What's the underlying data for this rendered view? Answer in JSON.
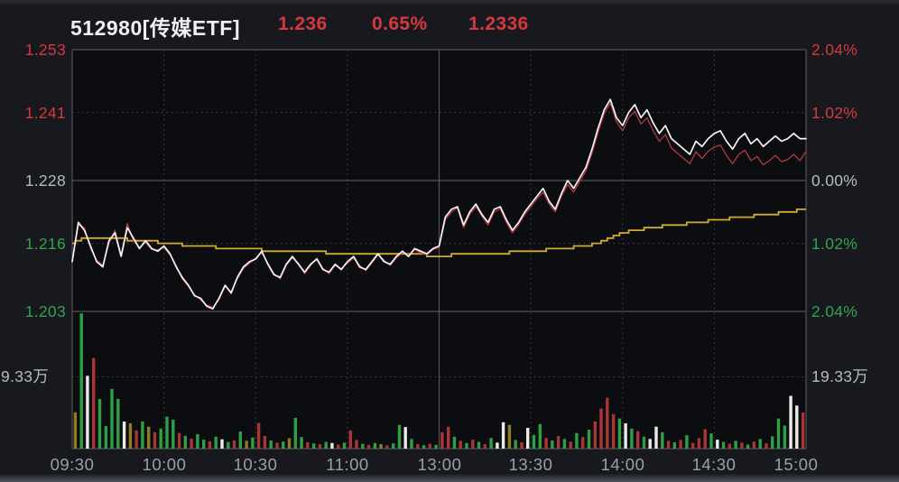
{
  "header": {
    "symbol_title": "512980[传媒ETF]",
    "price": "1.236",
    "change_pct": "0.65%",
    "iopv": "1.2336",
    "title_color": "#eef0f3",
    "value_color": "#d6393d"
  },
  "colors": {
    "background": "#17191e",
    "plot_background": "#0b0d11",
    "grid_solid": "#4f535a",
    "grid_dotted": "#80838a",
    "up_text": "#d6393d",
    "down_text": "#33a34f",
    "neutral_text": "#b6bac1",
    "time_text": "#9aa0a8"
  },
  "chart_data": {
    "type": "line",
    "title": "512980[传媒ETF] intraday price with volume",
    "x_axis": {
      "minutes_total": 240,
      "ticks": [
        {
          "label": "09:30",
          "minute": 0
        },
        {
          "label": "10:00",
          "minute": 30
        },
        {
          "label": "10:30",
          "minute": 60
        },
        {
          "label": "11:00",
          "minute": 90
        },
        {
          "label": "13:00",
          "minute": 120
        },
        {
          "label": "13:30",
          "minute": 150
        },
        {
          "label": "14:00",
          "minute": 180
        },
        {
          "label": "14:30",
          "minute": 210
        },
        {
          "label": "15:00",
          "minute": 240
        }
      ]
    },
    "price_axis": {
      "min": 1.203,
      "max": 1.253,
      "ticks": [
        {
          "label": "1.253",
          "value": 1.253,
          "color": "#d6393d"
        },
        {
          "label": "1.241",
          "value": 1.241,
          "color": "#d6393d"
        },
        {
          "label": "1.228",
          "value": 1.228,
          "color": "#b6bac1"
        },
        {
          "label": "1.216",
          "value": 1.216,
          "color": "#33a34f"
        },
        {
          "label": "1.203",
          "value": 1.203,
          "color": "#33a34f"
        }
      ]
    },
    "pct_axis": {
      "ticks": [
        {
          "label": "2.04%",
          "value": 1.253,
          "color": "#d6393d"
        },
        {
          "label": "1.02%",
          "value": 1.241,
          "color": "#d6393d"
        },
        {
          "label": "0.00%",
          "value": 1.228,
          "color": "#b6bac1"
        },
        {
          "label": "1.02%",
          "value": 1.216,
          "color": "#33a34f"
        },
        {
          "label": "2.04%",
          "value": 1.203,
          "color": "#33a34f"
        }
      ]
    },
    "volume_axis": {
      "max": 36.7,
      "gridline_value": 19.33,
      "left_label": "19.33万",
      "right_label": "19.33万",
      "label_color": "#b6bac1"
    },
    "grid": {
      "h_dotted_values": [
        1.241,
        1.216
      ],
      "h_solid_values": [
        1.228
      ],
      "v_dotted_minutes": [
        30,
        60,
        90,
        150,
        180,
        210
      ],
      "v_solid_minutes": [
        120
      ]
    },
    "series": [
      {
        "name": "average",
        "color": "#d2ab33",
        "width": 1.8,
        "step_quantize": 0.0005,
        "points": [
          [
            0,
            1.216
          ],
          [
            4,
            1.2171
          ],
          [
            10,
            1.2172
          ],
          [
            20,
            1.2166
          ],
          [
            30,
            1.2161
          ],
          [
            40,
            1.2155
          ],
          [
            50,
            1.2151
          ],
          [
            60,
            1.2148
          ],
          [
            70,
            1.2145
          ],
          [
            80,
            1.2143
          ],
          [
            90,
            1.2141
          ],
          [
            100,
            1.2139
          ],
          [
            110,
            1.2138
          ],
          [
            120,
            1.2137
          ],
          [
            128,
            1.2138
          ],
          [
            136,
            1.214
          ],
          [
            144,
            1.2143
          ],
          [
            152,
            1.2146
          ],
          [
            160,
            1.215
          ],
          [
            166,
            1.2154
          ],
          [
            170,
            1.2158
          ],
          [
            174,
            1.2166
          ],
          [
            178,
            1.2176
          ],
          [
            182,
            1.2184
          ],
          [
            188,
            1.2189
          ],
          [
            196,
            1.2195
          ],
          [
            204,
            1.22
          ],
          [
            212,
            1.2206
          ],
          [
            220,
            1.2211
          ],
          [
            228,
            1.2216
          ],
          [
            234,
            1.222
          ],
          [
            240,
            1.2226
          ]
        ]
      },
      {
        "name": "iopv",
        "color": "#b23a41",
        "width": 1.3,
        "sample_minutes": 2,
        "values": [
          1.2125,
          1.2195,
          1.219,
          1.215,
          1.2128,
          1.2118,
          1.216,
          1.2185,
          1.2138,
          1.2198,
          1.2165,
          1.2152,
          1.2162,
          1.2148,
          1.2148,
          1.2152,
          1.2138,
          1.2118,
          1.2092,
          1.2078,
          1.2062,
          1.2052,
          1.2042,
          1.2038,
          1.2052,
          1.2078,
          1.2068,
          1.2092,
          1.2112,
          1.2122,
          1.2132,
          1.2142,
          1.2122,
          1.2102,
          1.2092,
          1.2118,
          1.2132,
          1.2122,
          1.2102,
          1.2118,
          1.2132,
          1.2112,
          1.2102,
          1.2118,
          1.2112,
          1.2122,
          1.2132,
          1.2118,
          1.2108,
          1.2122,
          1.2138,
          1.2128,
          1.2118,
          1.2132,
          1.2142,
          1.2138,
          1.2148,
          1.2142,
          1.2138,
          1.2148,
          1.2152,
          1.2205,
          1.222,
          1.2228,
          1.219,
          1.2215,
          1.223,
          1.2212,
          1.2195,
          1.222,
          1.2226,
          1.22,
          1.218,
          1.2196,
          1.2215,
          1.223,
          1.2245,
          1.2258,
          1.2235,
          1.222,
          1.225,
          1.2272,
          1.2258,
          1.2278,
          1.2298,
          1.2332,
          1.2372,
          1.2408,
          1.2428,
          1.2392,
          1.2375,
          1.24,
          1.2412,
          1.2388,
          1.24,
          1.2375,
          1.2355,
          1.2368,
          1.2342,
          1.2332,
          1.2322,
          1.2312,
          1.2335,
          1.2322,
          1.2336,
          1.2344,
          1.2348,
          1.2328,
          1.2312,
          1.233,
          1.2338,
          1.2318,
          1.2326,
          1.231,
          1.2318,
          1.2328,
          1.2316,
          1.232,
          1.233,
          1.2318,
          1.2336
        ]
      },
      {
        "name": "price",
        "color": "#f4f4f4",
        "width": 1.7,
        "sample_minutes": 2,
        "values": [
          1.2125,
          1.22,
          1.2185,
          1.2155,
          1.2125,
          1.2115,
          1.2165,
          1.218,
          1.2135,
          1.219,
          1.217,
          1.215,
          1.2165,
          1.215,
          1.2145,
          1.2155,
          1.214,
          1.2115,
          1.2095,
          1.208,
          1.206,
          1.2055,
          1.204,
          1.2035,
          1.2055,
          1.208,
          1.2065,
          1.2095,
          1.2115,
          1.2125,
          1.213,
          1.2145,
          1.212,
          1.21,
          1.2095,
          1.212,
          1.2135,
          1.212,
          1.2105,
          1.212,
          1.213,
          1.211,
          1.2105,
          1.212,
          1.211,
          1.2125,
          1.2135,
          1.2115,
          1.211,
          1.2125,
          1.214,
          1.2125,
          1.212,
          1.2135,
          1.2145,
          1.2135,
          1.215,
          1.2145,
          1.214,
          1.215,
          1.2155,
          1.221,
          1.2225,
          1.223,
          1.2195,
          1.222,
          1.2235,
          1.2215,
          1.22,
          1.2225,
          1.223,
          1.2205,
          1.2185,
          1.22,
          1.222,
          1.2235,
          1.225,
          1.2265,
          1.224,
          1.2225,
          1.2255,
          1.228,
          1.2265,
          1.2285,
          1.2305,
          1.234,
          1.238,
          1.2415,
          1.2435,
          1.24,
          1.2385,
          1.241,
          1.2425,
          1.24,
          1.2415,
          1.239,
          1.237,
          1.2385,
          1.236,
          1.235,
          1.234,
          1.233,
          1.2355,
          1.2345,
          1.236,
          1.237,
          1.2375,
          1.2355,
          1.234,
          1.236,
          1.237,
          1.235,
          1.236,
          1.2345,
          1.2355,
          1.2365,
          1.2355,
          1.236,
          1.237,
          1.236,
          1.236
        ]
      }
    ],
    "volume_bars": {
      "bar_minutes": 2,
      "unit": "万",
      "colors": {
        "r": "#a93634",
        "g": "#2f9e44",
        "w": "#eceae4",
        "o": "#8f7d22"
      },
      "bars": [
        [
          9.8,
          "o"
        ],
        [
          36.4,
          "g"
        ],
        [
          19.6,
          "w"
        ],
        [
          24.4,
          "r"
        ],
        [
          13.4,
          "g"
        ],
        [
          6.1,
          "g"
        ],
        [
          16.1,
          "g"
        ],
        [
          13.4,
          "g"
        ],
        [
          7.3,
          "w"
        ],
        [
          6.8,
          "o"
        ],
        [
          4.9,
          "r"
        ],
        [
          7.3,
          "g"
        ],
        [
          5.9,
          "o"
        ],
        [
          4.4,
          "r"
        ],
        [
          5.4,
          "g"
        ],
        [
          8.6,
          "g"
        ],
        [
          7.8,
          "g"
        ],
        [
          4.2,
          "r"
        ],
        [
          3.4,
          "g"
        ],
        [
          2.7,
          "r"
        ],
        [
          3.9,
          "g"
        ],
        [
          2.4,
          "g"
        ],
        [
          2.0,
          "r"
        ],
        [
          3.2,
          "g"
        ],
        [
          2.5,
          "w"
        ],
        [
          1.8,
          "g"
        ],
        [
          2.2,
          "r"
        ],
        [
          4.6,
          "g"
        ],
        [
          2.1,
          "o"
        ],
        [
          3.0,
          "g"
        ],
        [
          6.9,
          "r"
        ],
        [
          3.4,
          "r"
        ],
        [
          2.2,
          "g"
        ],
        [
          1.6,
          "r"
        ],
        [
          1.9,
          "g"
        ],
        [
          2.8,
          "o"
        ],
        [
          8.3,
          "g"
        ],
        [
          3.1,
          "g"
        ],
        [
          1.7,
          "r"
        ],
        [
          1.4,
          "g"
        ],
        [
          1.2,
          "r"
        ],
        [
          1.8,
          "g"
        ],
        [
          1.5,
          "w"
        ],
        [
          1.1,
          "r"
        ],
        [
          1.6,
          "g"
        ],
        [
          4.9,
          "r"
        ],
        [
          2.3,
          "r"
        ],
        [
          1.3,
          "g"
        ],
        [
          1.0,
          "r"
        ],
        [
          1.5,
          "g"
        ],
        [
          1.2,
          "o"
        ],
        [
          0.9,
          "r"
        ],
        [
          1.4,
          "g"
        ],
        [
          6.4,
          "g"
        ],
        [
          5.8,
          "w"
        ],
        [
          2.6,
          "g"
        ],
        [
          1.2,
          "r"
        ],
        [
          0.9,
          "g"
        ],
        [
          1.3,
          "r"
        ],
        [
          1.0,
          "g"
        ],
        [
          4.4,
          "r"
        ],
        [
          5.9,
          "r"
        ],
        [
          3.2,
          "g"
        ],
        [
          2.1,
          "r"
        ],
        [
          1.5,
          "g"
        ],
        [
          2.4,
          "r"
        ],
        [
          1.8,
          "g"
        ],
        [
          1.2,
          "r"
        ],
        [
          2.9,
          "g"
        ],
        [
          1.6,
          "w"
        ],
        [
          7.1,
          "w"
        ],
        [
          6.4,
          "o"
        ],
        [
          2.3,
          "g"
        ],
        [
          1.7,
          "r"
        ],
        [
          5.6,
          "w"
        ],
        [
          3.7,
          "g"
        ],
        [
          6.6,
          "g"
        ],
        [
          2.9,
          "r"
        ],
        [
          2.2,
          "g"
        ],
        [
          3.4,
          "r"
        ],
        [
          2.6,
          "g"
        ],
        [
          1.9,
          "r"
        ],
        [
          4.2,
          "g"
        ],
        [
          3.1,
          "r"
        ],
        [
          5.1,
          "g"
        ],
        [
          7.3,
          "r"
        ],
        [
          10.8,
          "r"
        ],
        [
          13.7,
          "r"
        ],
        [
          9.3,
          "r"
        ],
        [
          8.1,
          "g"
        ],
        [
          6.8,
          "w"
        ],
        [
          5.4,
          "g"
        ],
        [
          4.7,
          "r"
        ],
        [
          3.2,
          "g"
        ],
        [
          2.6,
          "w"
        ],
        [
          5.9,
          "w"
        ],
        [
          4.4,
          "g"
        ],
        [
          2.1,
          "r"
        ],
        [
          1.7,
          "g"
        ],
        [
          2.3,
          "r"
        ],
        [
          3.6,
          "g"
        ],
        [
          1.5,
          "r"
        ],
        [
          2.8,
          "r"
        ],
        [
          5.2,
          "r"
        ],
        [
          4.1,
          "g"
        ],
        [
          2.4,
          "w"
        ],
        [
          1.8,
          "g"
        ],
        [
          1.3,
          "r"
        ],
        [
          2.1,
          "g"
        ],
        [
          1.6,
          "r"
        ],
        [
          1.1,
          "g"
        ],
        [
          1.9,
          "r"
        ],
        [
          2.6,
          "g"
        ],
        [
          1.4,
          "r"
        ],
        [
          3.3,
          "g"
        ],
        [
          8.1,
          "g"
        ],
        [
          6.2,
          "g"
        ],
        [
          14.2,
          "w"
        ],
        [
          11.6,
          "w"
        ],
        [
          9.7,
          "r"
        ]
      ]
    }
  }
}
